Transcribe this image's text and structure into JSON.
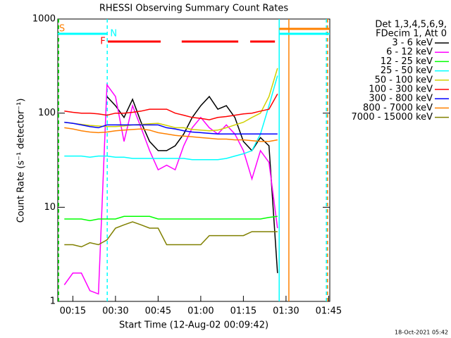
{
  "chart_data": {
    "type": "line",
    "title": "RHESSI Observing Summary Count Rates",
    "x_label": "Start Time (12-Aug-02 00:09:42)",
    "y_label": "Count Rate (s⁻¹ detector⁻¹)",
    "footer": "18-Oct-2021 05:42",
    "legend_header": [
      "Det 1,3,4,5,6,9,",
      "FDecim 1, Att 0"
    ],
    "y_scale": "log",
    "xlim": [
      9.7,
      105.4
    ],
    "ylim": [
      1,
      1000
    ],
    "xticks": [
      {
        "value": 15,
        "label": "00:15"
      },
      {
        "value": 30,
        "label": "00:30"
      },
      {
        "value": 45,
        "label": "00:45"
      },
      {
        "value": 60,
        "label": "01:00"
      },
      {
        "value": 75,
        "label": "01:15"
      },
      {
        "value": 90,
        "label": "01:30"
      },
      {
        "value": 105,
        "label": "01:45"
      }
    ],
    "yticks": [
      1,
      10,
      100,
      1000
    ],
    "x": [
      12,
      15,
      18,
      21,
      24,
      27,
      30,
      33,
      36,
      39,
      42,
      45,
      48,
      51,
      54,
      57,
      60,
      63,
      66,
      69,
      72,
      75,
      78,
      81,
      84,
      87
    ],
    "series": [
      {
        "name": "3 - 6 keV",
        "color": "#000000",
        "values": [
          null,
          null,
          null,
          null,
          null,
          150,
          120,
          90,
          140,
          80,
          50,
          40,
          40,
          45,
          60,
          90,
          120,
          150,
          110,
          120,
          90,
          50,
          40,
          55,
          45,
          2
        ]
      },
      {
        "name": "6 - 12 keV",
        "color": "#ff00ff",
        "values": [
          1.5,
          2,
          2,
          1.3,
          1.2,
          200,
          150,
          50,
          120,
          70,
          40,
          25,
          28,
          25,
          45,
          70,
          90,
          70,
          60,
          75,
          60,
          40,
          20,
          40,
          30,
          6
        ]
      },
      {
        "name": "12 - 25 keV",
        "color": "#00ff00",
        "values": [
          7.5,
          7.5,
          7.5,
          7.2,
          7.5,
          7.5,
          7.5,
          8,
          8,
          8,
          8,
          7.5,
          7.5,
          7.5,
          7.5,
          7.5,
          7.5,
          7.5,
          7.5,
          7.5,
          7.5,
          7.5,
          7.5,
          7.5,
          7.8,
          8
        ]
      },
      {
        "name": "25 - 50 keV",
        "color": "#00ffff",
        "values": [
          35,
          35,
          35,
          34,
          35,
          35,
          34,
          34,
          33,
          33,
          33,
          33,
          33,
          33,
          33,
          32,
          32,
          32,
          32,
          33,
          35,
          37,
          40,
          60,
          120,
          250
        ]
      },
      {
        "name": "50 - 100 keV",
        "color": "#d0d000",
        "values": [
          80,
          78,
          76,
          74,
          73,
          72,
          72,
          73,
          75,
          76,
          77,
          78,
          74,
          70,
          70,
          67,
          66,
          65,
          66,
          70,
          75,
          80,
          90,
          100,
          150,
          300
        ]
      },
      {
        "name": "100 - 300 keV",
        "color": "#ff0000",
        "values": [
          105,
          102,
          100,
          100,
          98,
          95,
          100,
          100,
          102,
          105,
          110,
          110,
          110,
          100,
          95,
          90,
          88,
          85,
          90,
          92,
          95,
          98,
          100,
          105,
          110,
          160
        ]
      },
      {
        "name": "300 - 800 keV",
        "color": "#0000ff",
        "values": [
          80,
          78,
          75,
          72,
          70,
          75,
          75,
          75,
          75,
          75,
          75,
          75,
          70,
          68,
          65,
          63,
          62,
          61,
          60,
          60,
          60,
          60,
          60,
          60,
          60,
          60
        ]
      },
      {
        "name": "800 - 7000 keV",
        "color": "#ff8000",
        "values": [
          70,
          68,
          65,
          63,
          62,
          63,
          65,
          66,
          67,
          68,
          66,
          62,
          60,
          58,
          57,
          56,
          55,
          54,
          53,
          53,
          52,
          52,
          51,
          50,
          50,
          52
        ]
      },
      {
        "name": "7000 - 15000 keV",
        "color": "#808000",
        "values": [
          4,
          4,
          3.8,
          4.2,
          4,
          4.5,
          6,
          6.5,
          7,
          6.5,
          6,
          6,
          4,
          4,
          4,
          4,
          4,
          5,
          5,
          5,
          5,
          5,
          5.5,
          5.5,
          5.5,
          5.5
        ]
      }
    ],
    "flags": [
      {
        "label": "S",
        "color": "#ff8000",
        "level": 785,
        "segments": [
          [
            87.6,
            105.4
          ]
        ]
      },
      {
        "label": "N",
        "color": "#00ffff",
        "level": 697,
        "segments": [
          [
            9.7,
            27.1
          ],
          [
            87.6,
            105.4
          ]
        ]
      },
      {
        "label": "F",
        "color": "#ff0000",
        "level": 576,
        "segments": [
          [
            27.3,
            45.9
          ],
          [
            53.3,
            73.2
          ],
          [
            77.4,
            86.1
          ]
        ]
      }
    ],
    "vlines": [
      {
        "x": 10.0,
        "color": "#00ff00",
        "dashed": true
      },
      {
        "x": 27.1,
        "color": "#00ffff",
        "dashed": true
      },
      {
        "x": 87.6,
        "color": "#00ffff",
        "dashed": false
      },
      {
        "x": 91.0,
        "color": "#ff8000",
        "dashed": false
      },
      {
        "x": 104.2,
        "color": "#00ffff",
        "dashed": true
      },
      {
        "x": 104.6,
        "color": "#ff8000",
        "dashed": true
      }
    ]
  }
}
